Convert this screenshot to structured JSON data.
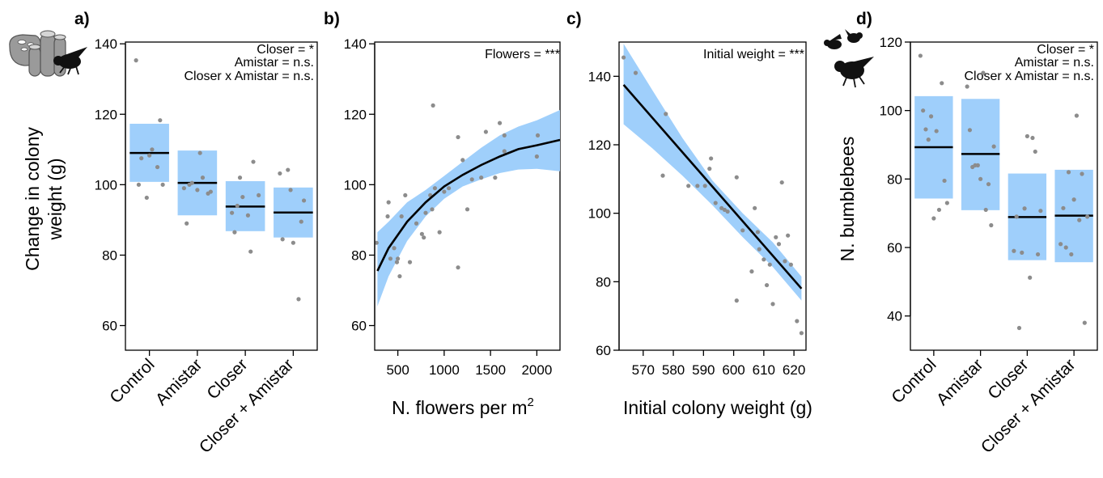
{
  "colors": {
    "ci_fill": "#9fcffb",
    "point": "#8c8c8c",
    "line": "#000000",
    "axis": "#000000",
    "icon": "#9a9a9a"
  },
  "icons": [
    "bumblebee-colony-icon",
    "bumblebee-icon"
  ],
  "chart_data": [
    {
      "panel": "a)",
      "type": "box",
      "ylabel_lines": [
        "Change in colony",
        "weight (g)"
      ],
      "categories": [
        "Control",
        "Amistar",
        "Closer",
        "Closer + Amistar"
      ],
      "yticks": [
        60,
        80,
        100,
        120,
        140
      ],
      "ylim": [
        53,
        140.5
      ],
      "annotations": [
        "Closer = *",
        "Amistar = n.s.",
        "Closer x Amistar = n.s."
      ],
      "groups": [
        {
          "mean": 109,
          "ci": [
            100.8,
            117.3
          ],
          "points": [
            135.3,
            96.3,
            105,
            100,
            108.3,
            118.3,
            107.5,
            110,
            100
          ]
        },
        {
          "mean": 100.5,
          "ci": [
            91.3,
            109.7
          ],
          "points": [
            89,
            98.5,
            97.5,
            100,
            109,
            98,
            100.5,
            102,
            99
          ]
        },
        {
          "mean": 93.8,
          "ci": [
            86.8,
            101
          ],
          "points": [
            94,
            91.3,
            97,
            102,
            81,
            92,
            96.5,
            106.5,
            86.5
          ]
        },
        {
          "mean": 92.1,
          "ci": [
            85,
            99.2
          ],
          "points": [
            104.2,
            67.5,
            103.2,
            98.5,
            89.5,
            84.5,
            83.5,
            95.5
          ]
        }
      ]
    },
    {
      "panel": "b)",
      "type": "scatter",
      "xlabel": "N. flowers per m",
      "xlabel_sup": "2",
      "xticks": [
        500,
        1000,
        1500,
        2000
      ],
      "xlim": [
        250,
        2250
      ],
      "yticks": [
        60,
        80,
        100,
        120,
        140
      ],
      "ylim": [
        53,
        140.5
      ],
      "annotations": [
        "Flowers = ***"
      ],
      "fit": {
        "x": [
          280,
          400,
          600,
          800,
          1000,
          1200,
          1400,
          1600,
          1800,
          2000,
          2250
        ],
        "y": [
          75.5,
          82,
          89.5,
          95,
          99.5,
          102.8,
          105.6,
          108,
          110.1,
          111.2,
          112.7
        ]
      },
      "ci_lower": [
        65.5,
        74,
        84,
        91,
        96,
        99.5,
        101.5,
        103.3,
        104.3,
        104.5,
        103.8
      ],
      "ci_upper": [
        86.5,
        89.5,
        95,
        98.5,
        102.5,
        106.5,
        110.5,
        114,
        116.5,
        118.3,
        121.2
      ],
      "points": [
        [
          270,
          83.5
        ],
        [
          390,
          91
        ],
        [
          400,
          95
        ],
        [
          420,
          79
        ],
        [
          460,
          82
        ],
        [
          490,
          78
        ],
        [
          500,
          79
        ],
        [
          520,
          74
        ],
        [
          540,
          91
        ],
        [
          580,
          97
        ],
        [
          630,
          78
        ],
        [
          700,
          89
        ],
        [
          760,
          86
        ],
        [
          780,
          85
        ],
        [
          800,
          92
        ],
        [
          850,
          97
        ],
        [
          870,
          93
        ],
        [
          880,
          122.5
        ],
        [
          900,
          99
        ],
        [
          950,
          86.5
        ],
        [
          1000,
          98
        ],
        [
          1050,
          99
        ],
        [
          1150,
          76.5
        ],
        [
          1150,
          113.5
        ],
        [
          1200,
          107
        ],
        [
          1250,
          93
        ],
        [
          1300,
          101.5
        ],
        [
          1400,
          102
        ],
        [
          1450,
          115
        ],
        [
          1550,
          102
        ],
        [
          1600,
          117.5
        ],
        [
          1650,
          114
        ],
        [
          1650,
          109.5
        ],
        [
          2000,
          108
        ],
        [
          2010,
          114
        ]
      ]
    },
    {
      "panel": "c)",
      "type": "scatter",
      "xlabel": "Initial colony weight (g)",
      "xticks": [
        570,
        580,
        590,
        600,
        610,
        620
      ],
      "xlim": [
        562,
        624
      ],
      "yticks": [
        60,
        80,
        100,
        120,
        140
      ],
      "ylim": [
        60,
        150
      ],
      "annotations": [
        "Initial weight = ***"
      ],
      "fit": {
        "x": [
          563.5,
          622.5
        ],
        "y": [
          137.5,
          78
        ]
      },
      "ci_x": [
        563.5,
        573,
        583,
        593,
        603,
        613,
        622.5
      ],
      "ci_lower": [
        126,
        119,
        111,
        102.3,
        93,
        84.3,
        74.5
      ],
      "ci_upper": [
        149.5,
        136,
        122,
        109.5,
        100,
        91.5,
        81.5
      ],
      "points": [
        [
          563.5,
          145.5
        ],
        [
          567.5,
          141
        ],
        [
          576.5,
          111
        ],
        [
          577.5,
          129
        ],
        [
          585,
          108
        ],
        [
          588,
          108
        ],
        [
          590.5,
          108
        ],
        [
          592,
          113
        ],
        [
          592.5,
          116
        ],
        [
          594,
          103
        ],
        [
          596,
          101.5
        ],
        [
          597,
          101
        ],
        [
          598,
          100.5
        ],
        [
          601,
          110.5
        ],
        [
          601,
          74.5
        ],
        [
          603,
          95
        ],
        [
          606,
          83
        ],
        [
          607,
          101.5
        ],
        [
          608,
          94.5
        ],
        [
          608.5,
          89.5
        ],
        [
          610,
          86.5
        ],
        [
          611,
          79
        ],
        [
          612,
          85
        ],
        [
          613,
          73.5
        ],
        [
          614,
          93
        ],
        [
          615,
          91
        ],
        [
          616,
          109
        ],
        [
          617,
          86
        ],
        [
          618,
          93.5
        ],
        [
          619,
          85
        ],
        [
          621,
          68.5
        ],
        [
          622.5,
          65
        ]
      ]
    },
    {
      "panel": "d)",
      "type": "box",
      "ylabel": "N. bumblebees",
      "categories": [
        "Control",
        "Amistar",
        "Closer",
        "Closer + Amistar"
      ],
      "yticks": [
        40,
        60,
        80,
        100,
        120
      ],
      "ylim": [
        30,
        120
      ],
      "annotations": [
        "Closer = *",
        "Amistar = n.s.",
        "Closer x Amistar = n.s."
      ],
      "groups": [
        {
          "mean": 89.3,
          "ci": [
            74.3,
            104.2
          ],
          "points": [
            116,
            98.3,
            108,
            100,
            68.5,
            79.5,
            94.5,
            94,
            73,
            91.5,
            71
          ]
        },
        {
          "mean": 87.3,
          "ci": [
            70.9,
            103.4
          ],
          "points": [
            94.3,
            80,
            66.5,
            83.5,
            111,
            89.5,
            84,
            71,
            107,
            84,
            78.5
          ]
        },
        {
          "mean": 68.9,
          "ci": [
            56.3,
            81.6
          ],
          "points": [
            36.5,
            51.2,
            70.7,
            58.5,
            92,
            59,
            71.4,
            88,
            69,
            92.5,
            58
          ]
        },
        {
          "mean": 69.3,
          "ci": [
            55.7,
            82.7
          ],
          "points": [
            82,
            68,
            61,
            58,
            81.5,
            71.5,
            74,
            38,
            60,
            98.5,
            69
          ]
        }
      ]
    }
  ]
}
